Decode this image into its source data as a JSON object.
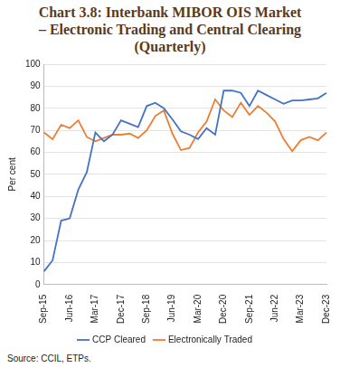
{
  "chart_data": {
    "type": "line",
    "title": [
      "Chart 3.8: Interbank MIBOR OIS Market",
      "– Electronic Trading and Central Clearing",
      "(Quarterly)"
    ],
    "y_label": "Per cent",
    "source": "Source: CCIL, ETPs.",
    "categories": [
      "Sep-15",
      null,
      null,
      "Jun-16",
      null,
      null,
      "Mar-17",
      null,
      null,
      "Dec-17",
      null,
      null,
      "Sep-18",
      null,
      null,
      "Jun-19",
      null,
      null,
      "Mar-20",
      null,
      null,
      "Dec-20",
      null,
      null,
      "Sep-21",
      null,
      null,
      "Jun-22",
      null,
      null,
      "Mar-23",
      null,
      null,
      "Dec-23"
    ],
    "series": [
      {
        "name": "CCP Cleared",
        "color": "#4472c4",
        "values": [
          6,
          11,
          29,
          30,
          43,
          51,
          69,
          65,
          68,
          74.5,
          73,
          71.5,
          81,
          82.5,
          80,
          75,
          69.5,
          68,
          66,
          71,
          68,
          88,
          88,
          87,
          81,
          88,
          86,
          84,
          82,
          83.5,
          83.5,
          84,
          84.5,
          87
        ]
      },
      {
        "name": "Electronically Traded",
        "color": "#ed7d31",
        "values": [
          69,
          66,
          72.5,
          71,
          74.5,
          67,
          65,
          66.5,
          68,
          68,
          68.5,
          66.5,
          70,
          76.5,
          79,
          68.5,
          61,
          62,
          69,
          74,
          84,
          79,
          76,
          82.5,
          77,
          81,
          78,
          74,
          66,
          60.5,
          65.5,
          67,
          65.5,
          69
        ]
      }
    ],
    "ylim": [
      0,
      100
    ],
    "yticks": [
      0,
      10,
      20,
      30,
      40,
      50,
      60,
      70,
      80,
      90,
      100
    ],
    "grid": true,
    "legend": "bottom"
  }
}
